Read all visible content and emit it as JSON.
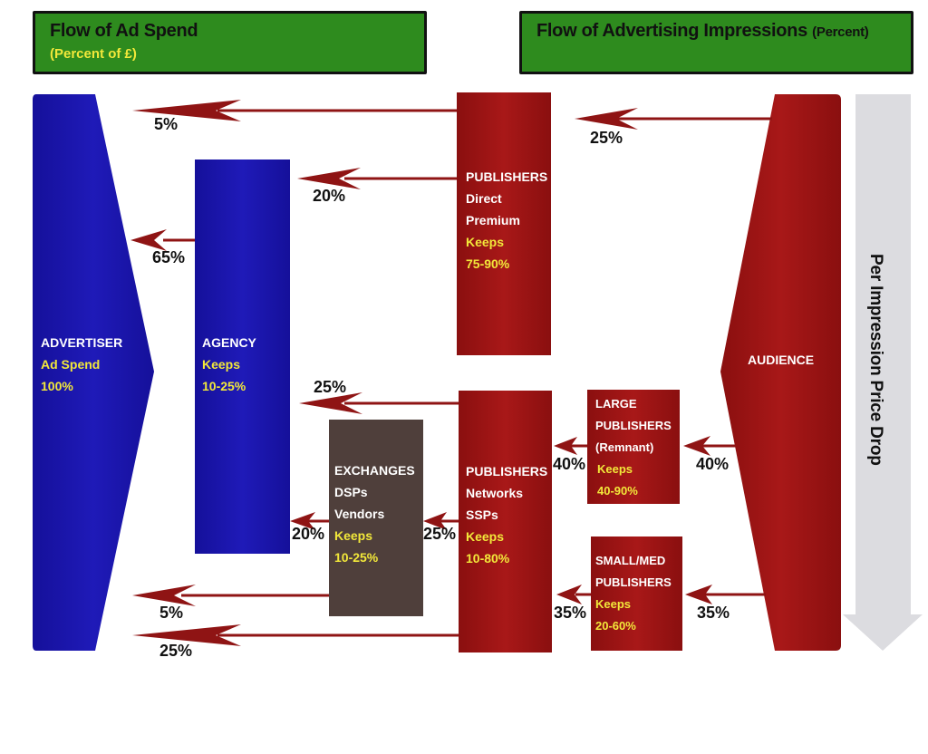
{
  "header_left": {
    "title": "Flow of Ad Spend",
    "subtitle": "(Percent of £)"
  },
  "header_right": {
    "title": "Flow of Advertising Impressions",
    "title_suffix": "(Percent)"
  },
  "nodes": {
    "advertiser": {
      "name": "ADVERTISER",
      "line2": "Ad Spend",
      "line3": "100%"
    },
    "agency": {
      "name": "AGENCY",
      "line2": "Keeps",
      "line3": "10-25%"
    },
    "publishers_direct": {
      "name": "PUBLISHERS",
      "line2": "Direct",
      "line3": "Premium",
      "line4": "Keeps",
      "line5": "75-90%"
    },
    "audience": {
      "name": "AUDIENCE"
    },
    "exchanges": {
      "name": "EXCHANGES",
      "line2": "DSPs",
      "line3": "Vendors",
      "line4": "Keeps",
      "line5": "10-25%"
    },
    "publishers_networks": {
      "name": "PUBLISHERS",
      "line2": "Networks",
      "line3": "SSPs",
      "line4": "Keeps",
      "line5": "10-80%"
    },
    "large_publishers": {
      "name": "LARGE",
      "line2": "PUBLISHERS",
      "line3": "(Remnant)",
      "line4": "Keeps",
      "line5": "40-90%"
    },
    "small_publishers": {
      "name": "SMALL/MED",
      "line2": "PUBLISHERS",
      "line3": "Keeps",
      "line4": "20-60%"
    }
  },
  "flows": {
    "direct_to_advertiser": "5%",
    "audience_to_direct": "25%",
    "direct_to_agency": "20%",
    "agency_to_advertiser": "65%",
    "networks_to_agency": "25%",
    "audience_to_large": "40%",
    "large_to_networks": "40%",
    "exchanges_to_agency": "20%",
    "networks_to_exchanges": "25%",
    "exchanges_to_advertiser": "5%",
    "audience_to_small": "35%",
    "small_to_networks": "35%",
    "networks_to_advertiser": "25%"
  },
  "price_drop_label": "Per Impression Price Drop",
  "colors": {
    "header_green": "#2e8b1e",
    "advertiser_blue": "#1a14a8",
    "publisher_red": "#9c1212",
    "exchange_brown": "#4f3f3b",
    "arrow_red": "#8f1414",
    "price_drop_gray": "#dcdce0",
    "keeps_yellow": "#f2e83a"
  }
}
